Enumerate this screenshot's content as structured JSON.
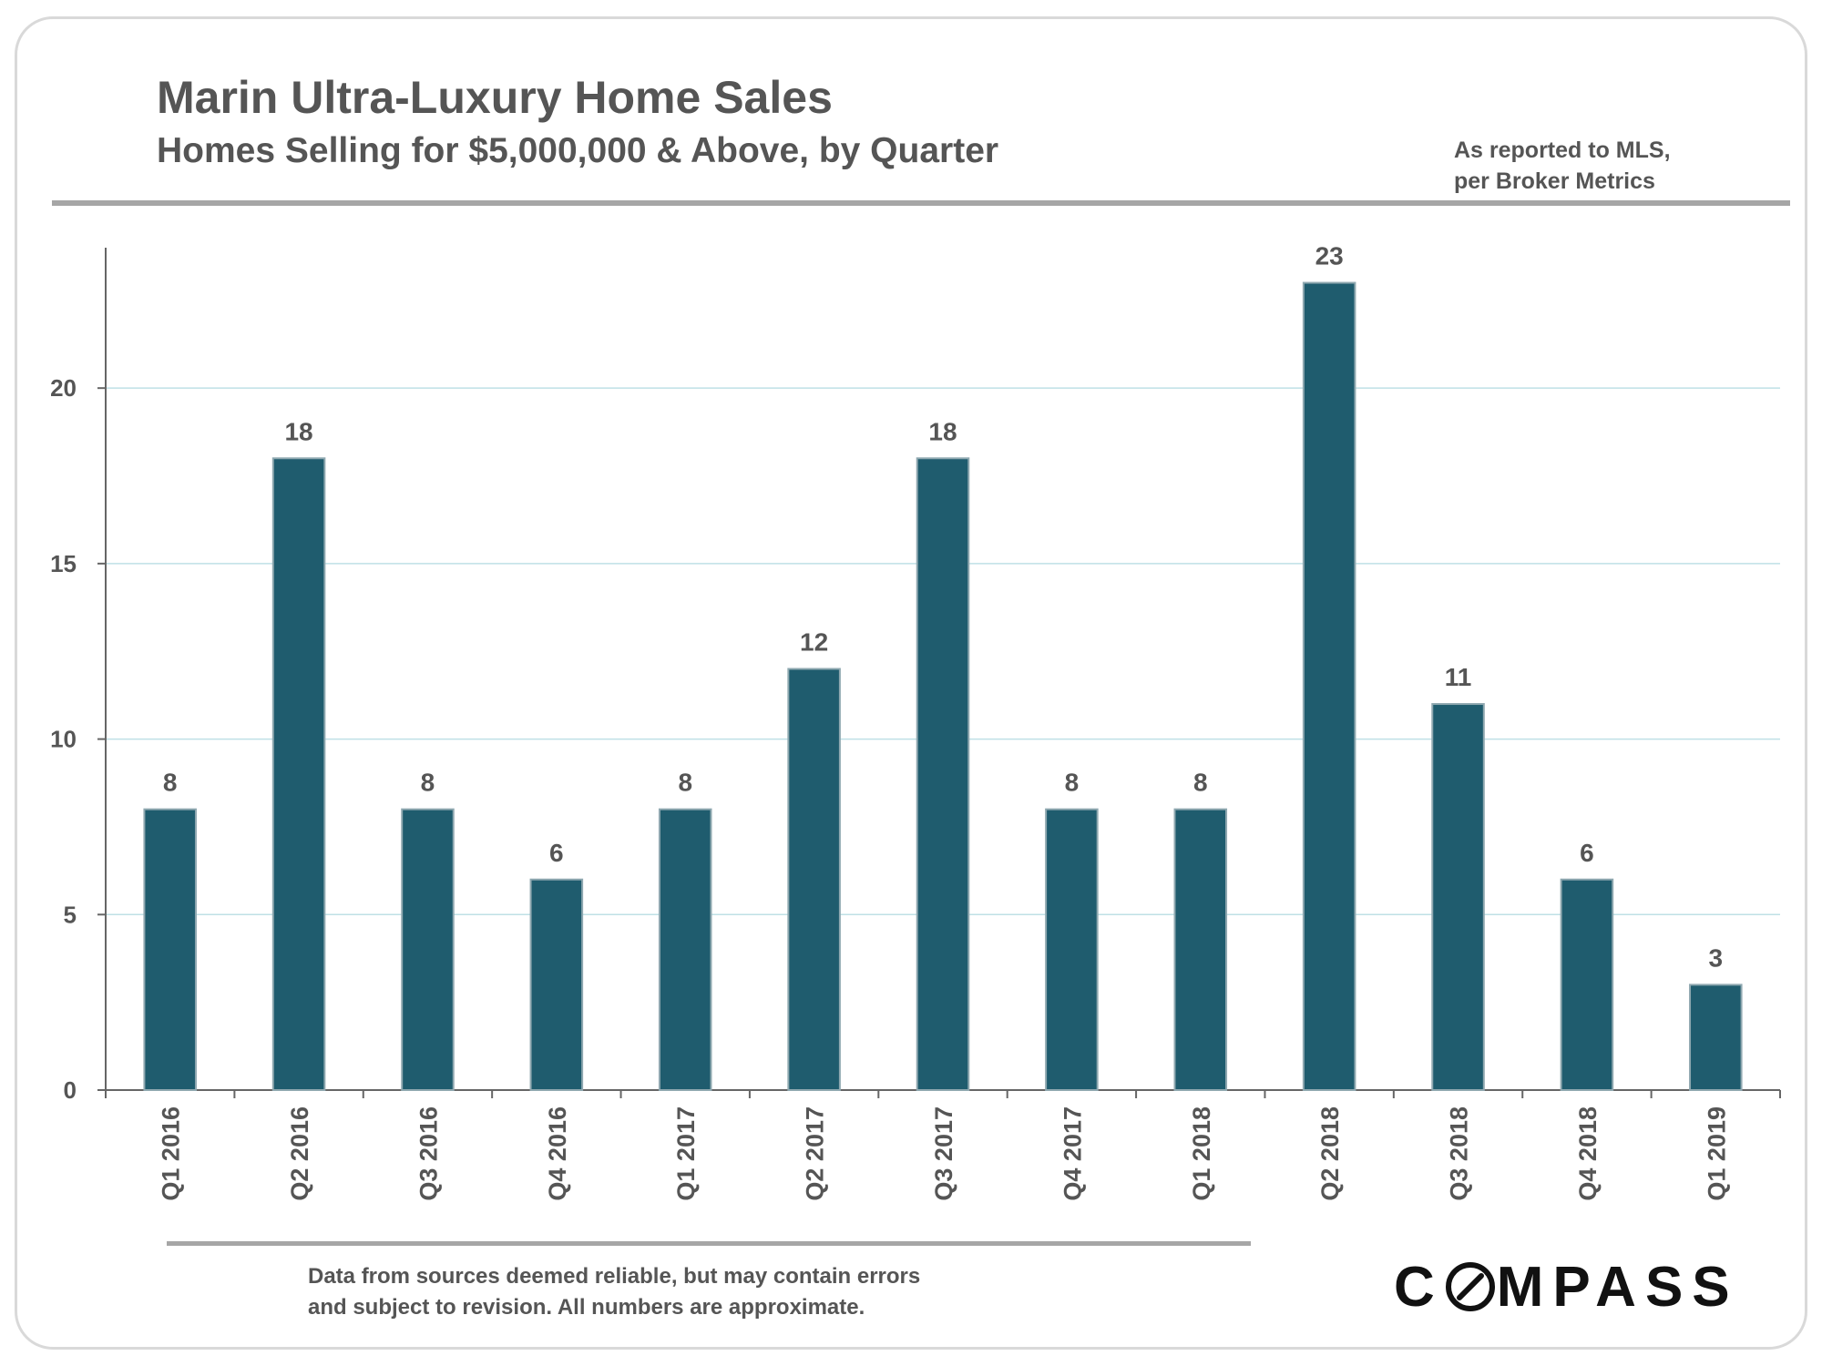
{
  "header": {
    "title": "Marin Ultra-Luxury Home Sales",
    "subtitle": "Homes Selling for $5,000,000 & Above, by Quarter",
    "note_line1": "As reported to MLS,",
    "note_line2": "per Broker Metrics"
  },
  "footer": {
    "disclaimer_line1": "Data from sources deemed reliable, but may contain errors",
    "disclaimer_line2": "and subject to revision. All numbers are approximate.",
    "logo_prefix": "C",
    "logo_suffix": "MPASS"
  },
  "colors": {
    "bar": "#1f5c6e",
    "bar_edge": "#8fa8b0",
    "grid": "#bfe0e6",
    "axis": "#666666",
    "text": "#555555"
  },
  "chart_data": {
    "type": "bar",
    "title": "Marin Ultra-Luxury Home Sales",
    "subtitle": "Homes Selling for $5,000,000 & Above, by Quarter",
    "xlabel": "",
    "ylabel": "",
    "ylim": [
      0,
      24
    ],
    "yticks": [
      0,
      5,
      10,
      15,
      20
    ],
    "grid": true,
    "categories": [
      "Q1 2016",
      "Q2 2016",
      "Q3 2016",
      "Q4 2016",
      "Q1 2017",
      "Q2 2017",
      "Q3 2017",
      "Q4 2017",
      "Q1 2018",
      "Q2 2018",
      "Q3 2018",
      "Q4 2018",
      "Q1 2019"
    ],
    "values": [
      8,
      18,
      8,
      6,
      8,
      12,
      18,
      8,
      8,
      23,
      11,
      6,
      3
    ],
    "data_labels": true
  }
}
